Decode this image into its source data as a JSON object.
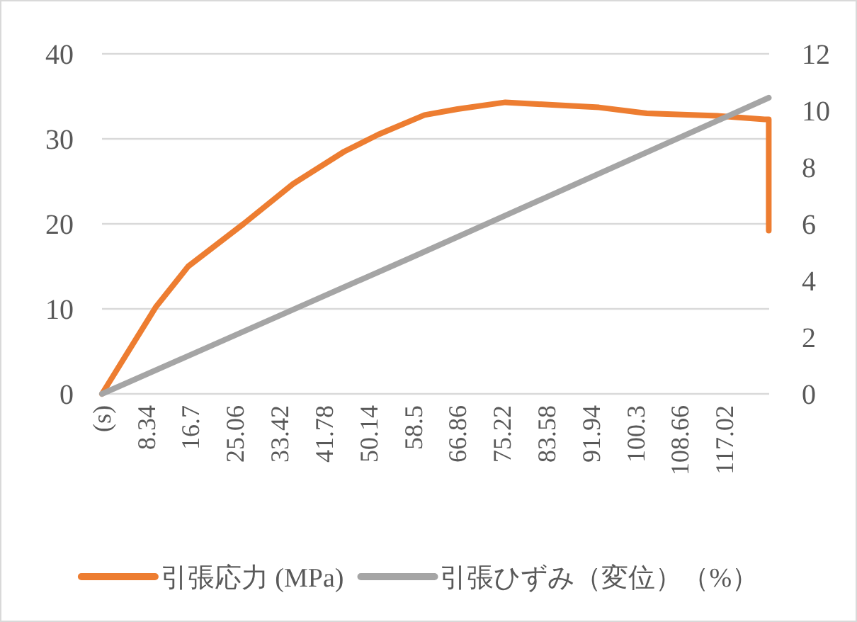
{
  "chart_data": {
    "type": "line",
    "xlim": [
      0,
      125.38
    ],
    "xticks": [
      {
        "value": 0,
        "label": "(s)"
      },
      8.34,
      16.7,
      25.06,
      33.42,
      41.78,
      50.14,
      58.5,
      66.86,
      75.22,
      83.58,
      91.94,
      100.3,
      108.66,
      117.02
    ],
    "ylim": [
      0,
      40
    ],
    "yticks": [
      0,
      10,
      20,
      30,
      40
    ],
    "y2lim": [
      0,
      12
    ],
    "y2ticks": [
      0,
      2,
      4,
      6,
      8,
      10,
      12
    ],
    "grid": "y",
    "legend": "bottom",
    "marker": "none",
    "line_style": "solid",
    "series": [
      {
        "name": "引張応力 (MPa)",
        "color": "#ed7d31",
        "x": [
          0,
          10.1,
          16.2,
          26.6,
          35.9,
          45.5,
          51.9,
          60.6,
          66.8,
          75.8,
          84.6,
          93.4,
          102.4,
          115.7,
          124.5,
          125.3,
          125.3
        ],
        "values": [
          0,
          10.2,
          15,
          20,
          24.7,
          28.5,
          30.5,
          32.8,
          33.5,
          34.3,
          34,
          33.7,
          33,
          32.7,
          32.3,
          32.3,
          19.2
        ]
      },
      {
        "name": "引張ひずみ（変位）（%）",
        "color": "#a5a5a5",
        "axis": "y2",
        "x": [
          0,
          58,
          125.3
        ],
        "values": [
          0,
          4.8,
          10.45
        ]
      }
    ]
  }
}
